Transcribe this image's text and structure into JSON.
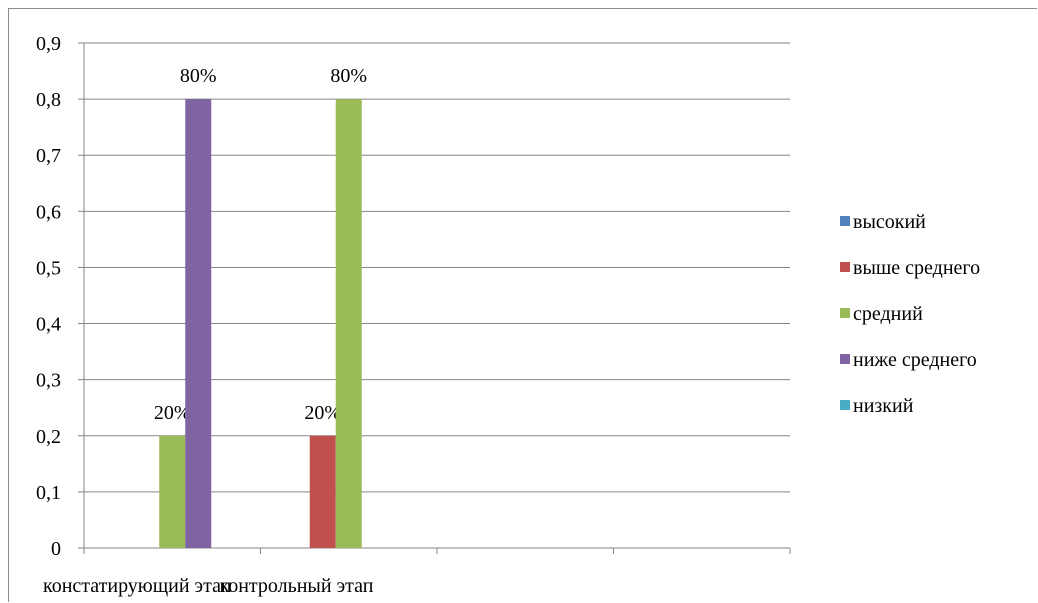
{
  "chart_data": {
    "type": "bar",
    "title": "",
    "xlabel": "",
    "ylabel": "",
    "categories": [
      "констатирующий этап",
      "контрольный этап",
      "",
      ""
    ],
    "ylim": [
      0,
      0.9
    ],
    "yticks": [
      "0",
      "0,1",
      "0,2",
      "0,3",
      "0,4",
      "0,5",
      "0,6",
      "0,7",
      "0,8",
      "0,9"
    ],
    "grid": true,
    "legend_position": "right",
    "series": [
      {
        "name": "высокий",
        "color": "#4F81BD",
        "values": [
          0,
          0,
          0,
          0
        ],
        "labels": [
          "",
          "",
          "",
          ""
        ]
      },
      {
        "name": "выше среднего",
        "color": "#C0504D",
        "values": [
          0,
          0.2,
          0,
          0
        ],
        "labels": [
          "",
          "20%",
          "",
          ""
        ]
      },
      {
        "name": "средний",
        "color": "#9BBB59",
        "values": [
          0.2,
          0.8,
          0,
          0
        ],
        "labels": [
          "20%",
          "80%",
          "",
          ""
        ]
      },
      {
        "name": "ниже среднего",
        "color": "#8064A2",
        "values": [
          0.8,
          0,
          0,
          0
        ],
        "labels": [
          "80%",
          "",
          "",
          ""
        ]
      },
      {
        "name": "низкий",
        "color": "#4BACC6",
        "values": [
          0,
          0,
          0,
          0
        ],
        "labels": [
          "",
          "",
          "",
          ""
        ]
      }
    ]
  }
}
